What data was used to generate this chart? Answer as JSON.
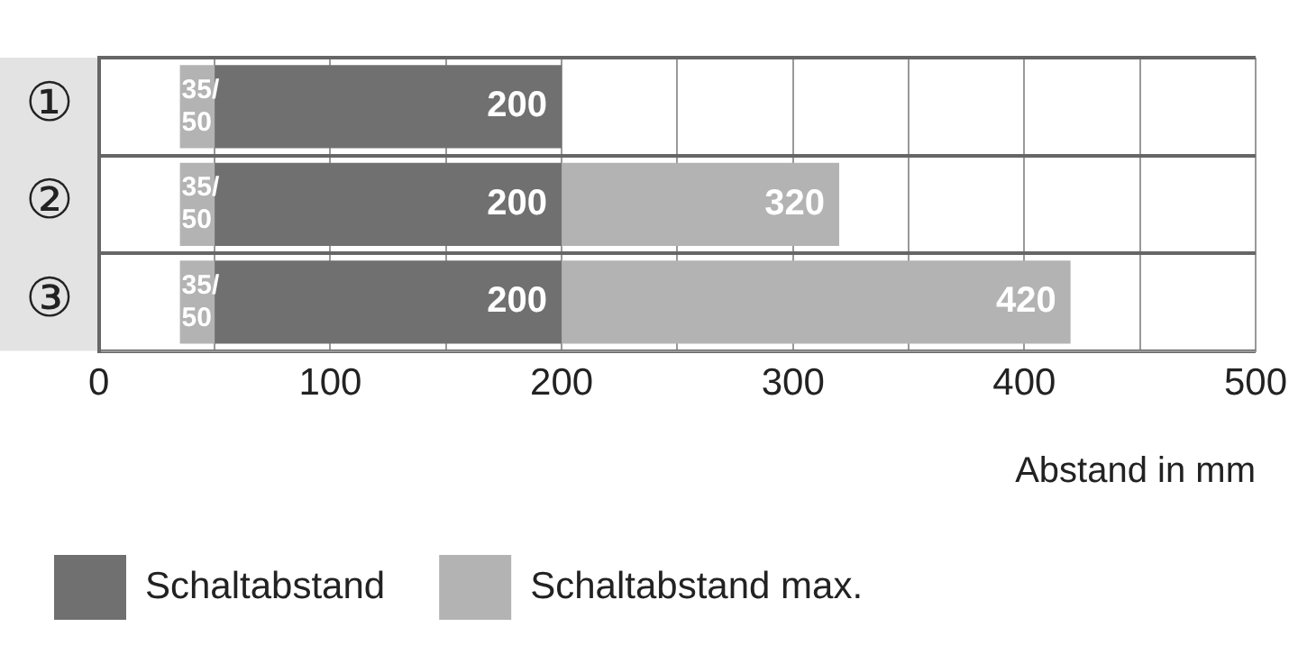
{
  "chart_data": {
    "type": "bar",
    "orientation": "horizontal",
    "categories": [
      "①",
      "②",
      "③"
    ],
    "xlabel": "Abstand in mm",
    "xlim": [
      0,
      500
    ],
    "xticks": [
      0,
      {
        "value": 50,
        "label": null
      },
      100,
      {
        "value": 150,
        "label": null
      },
      200,
      {
        "value": 250,
        "label": null
      },
      300,
      {
        "value": 350,
        "label": null
      },
      400,
      {
        "value": 450,
        "label": null
      },
      500
    ],
    "grid": true,
    "legend": "bottom",
    "series": [
      {
        "color": "#b3b3b3",
        "base": [
          35,
          35,
          35
        ],
        "values": [
          15,
          15,
          15
        ],
        "value_labels": [
          "35/50",
          "35/50",
          "35/50"
        ]
      },
      {
        "name": "Schaltabstand",
        "color": "#707070",
        "base": [
          50,
          50,
          50
        ],
        "values": [
          150,
          150,
          150
        ],
        "value_labels": [
          "200",
          "200",
          "200"
        ]
      },
      {
        "name": "Schaltabstand max.",
        "color": "#b3b3b3",
        "base": [
          null,
          200,
          200
        ],
        "values": [
          null,
          120,
          220
        ],
        "value_labels": [
          null,
          "320",
          "420"
        ]
      }
    ]
  }
}
